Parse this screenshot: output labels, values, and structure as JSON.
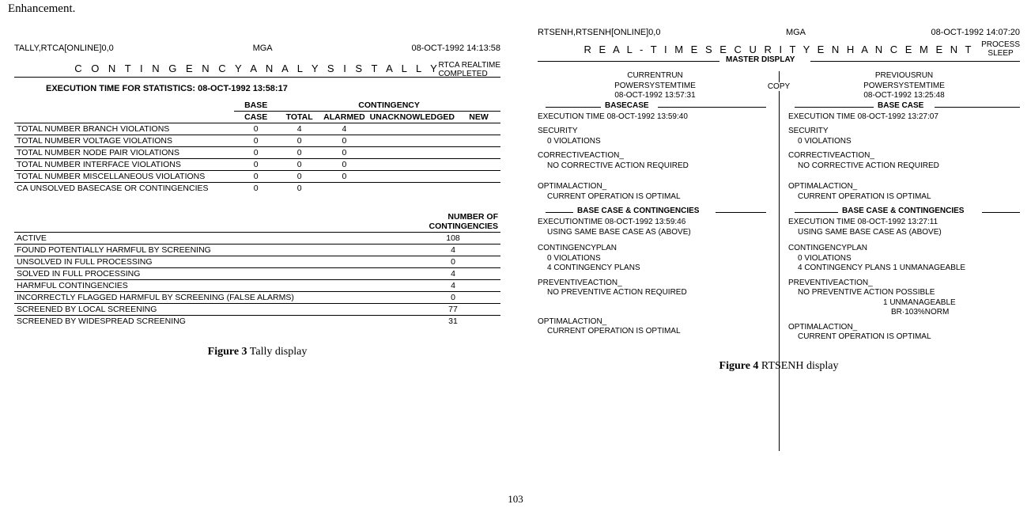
{
  "fragment": "Enhancement.",
  "left": {
    "header": {
      "path": "TALLY,RTCA[ONLINE]0,0",
      "mga": "MGA",
      "datetime": "08-OCT-1992  14:13:58"
    },
    "title": "C O N T I N G E N C Y   A N A L Y S I S   T A L L Y",
    "title_right1": "RTCA        REALTIME",
    "title_right2": "COMPLETED",
    "exec_time": "EXECUTION TIME FOR STATISTICS:  08-OCT-1992  13:58:17",
    "tally_header": {
      "base": "BASE",
      "case": "CASE",
      "contingency": "CONTINGENCY",
      "total": "TOTAL",
      "alarmed": "ALARMED",
      "unack": "UNACKNOWLEDGED",
      "new": "NEW"
    },
    "tally_rows": [
      {
        "label": "TOTAL NUMBER BRANCH VIOLATIONS",
        "base": "0",
        "total": "4",
        "alarmed": "4",
        "unack": "",
        "new": ""
      },
      {
        "label": "TOTAL NUMBER VOLTAGE VIOLATIONS",
        "base": "0",
        "total": "0",
        "alarmed": "0",
        "unack": "",
        "new": ""
      },
      {
        "label": "TOTAL NUMBER NODE PAIR VIOLATIONS",
        "base": "0",
        "total": "0",
        "alarmed": "0",
        "unack": "",
        "new": ""
      },
      {
        "label": "TOTAL NUMBER INTERFACE VIOLATIONS",
        "base": "0",
        "total": "0",
        "alarmed": "0",
        "unack": "",
        "new": ""
      },
      {
        "label": "TOTAL NUMBER MISCELLANEOUS VIOLATIONS",
        "base": "0",
        "total": "0",
        "alarmed": "0",
        "unack": "",
        "new": ""
      },
      {
        "label": "CA UNSOLVED BASECASE OR CONTINGENCIES",
        "base": "0",
        "total": "0",
        "alarmed": "",
        "unack": "",
        "new": ""
      }
    ],
    "cont_header": "NUMBER OF CONTINGENCIES",
    "cont_rows": [
      {
        "label": "ACTIVE",
        "val": "108"
      },
      {
        "label": "FOUND POTENTIALLY HARMFUL BY SCREENING",
        "val": "4"
      },
      {
        "label": "UNSOLVED IN FULL PROCESSING",
        "val": "0"
      },
      {
        "label": "SOLVED IN FULL PROCESSING",
        "val": "4"
      },
      {
        "label": "HARMFUL CONTINGENCIES",
        "val": "4"
      },
      {
        "label": "INCORRECTLY FLAGGED HARMFUL BY SCREENING (FALSE ALARMS)",
        "val": "0"
      },
      {
        "label": "SCREENED BY LOCAL SCREENING",
        "val": "77"
      },
      {
        "label": "SCREENED BY WIDESPREAD SCREENING",
        "val": "31"
      }
    ],
    "caption_bold": "Figure 3",
    "caption_rest": "  Tally display"
  },
  "right": {
    "header": {
      "path": "RTSENH,RTSENH[ONLINE]0,0",
      "mga": "MGA",
      "datetime": "08-OCT-1992  14:07:20"
    },
    "title": "R E A L - T I M E   S E C U R I T Y   E N H A N C E M E N T",
    "title_right1": "PROCESS",
    "title_right2": "SLEEP",
    "master_label": "MASTER DISPLAY",
    "copy": "COPY",
    "current": {
      "run": "CURRENTRUN",
      "pst": "POWERSYSTEMTIME",
      "time": "08-OCT-1992 13:57:31",
      "basecase_label": "BASECASE",
      "exec": "EXECUTION TIME  08-OCT-1992 13:59:40",
      "security_label": "SECURITY",
      "security_val": "0 VIOLATIONS",
      "corr_label": "CORRECTIVEACTION_",
      "corr_val": "NO CORRECTIVE ACTION REQUIRED",
      "opt_label": "OPTIMALACTION_",
      "opt_val": "CURRENT OPERATION IS OPTIMAL",
      "bcc_label": "BASE CASE & CONTINGENCIES",
      "exec2": "EXECUTIONTIME  08-OCT-1992 13:59:46",
      "exec2b": "USING SAME BASE CASE AS (ABOVE)",
      "plan_label": "CONTINGENCYPLAN",
      "plan_v1": "0 VIOLATIONS",
      "plan_v2": "4 CONTINGENCY PLANS",
      "prev_label": "PREVENTIVEACTION_",
      "prev_val": "NO PREVENTIVE ACTION REQUIRED",
      "opt2_label": "OPTIMALACTION_",
      "opt2_val": "CURRENT OPERATION IS OPTIMAL"
    },
    "previous": {
      "run": "PREVIOUSRUN",
      "pst": "POWERSYSTEMTIME",
      "time": "08-OCT-1992 13:25:48",
      "basecase_label": "BASE CASE",
      "exec": "EXECUTION TIME          08-OCT-1992  13:27:07",
      "security_label": "SECURITY",
      "security_val": "0 VIOLATIONS",
      "corr_label": "CORRECTIVEACTION_",
      "corr_val": "NO CORRECTIVE ACTION REQUIRED",
      "opt_label": "OPTIMALACTION_",
      "opt_val": "CURRENT OPERATION IS OPTIMAL",
      "bcc_label": "BASE CASE & CONTINGENCIES",
      "exec2": "EXECUTION TIME              08-OCT-1992  13:27:11",
      "exec2b": "USING SAME BASE CASE AS (ABOVE)",
      "plan_label": "CONTINGENCYPLAN",
      "plan_v1": "0 VIOLATIONS",
      "plan_v2": "4 CONTINGENCY PLANS     1 UNMANAGEABLE",
      "prev_label": "PREVENTIVEACTION_",
      "prev_val": "NO PREVENTIVE ACTION POSSIBLE",
      "prev_val2": "1 UNMANAGEABLE",
      "prev_val3": "BR·103%NORM",
      "opt2_label": "OPTIMALACTION_",
      "opt2_val": "CURRENT OPERATION IS OPTIMAL"
    },
    "caption_bold": "Figure 4",
    "caption_rest": "  RTSENH display"
  },
  "page_number": "103"
}
